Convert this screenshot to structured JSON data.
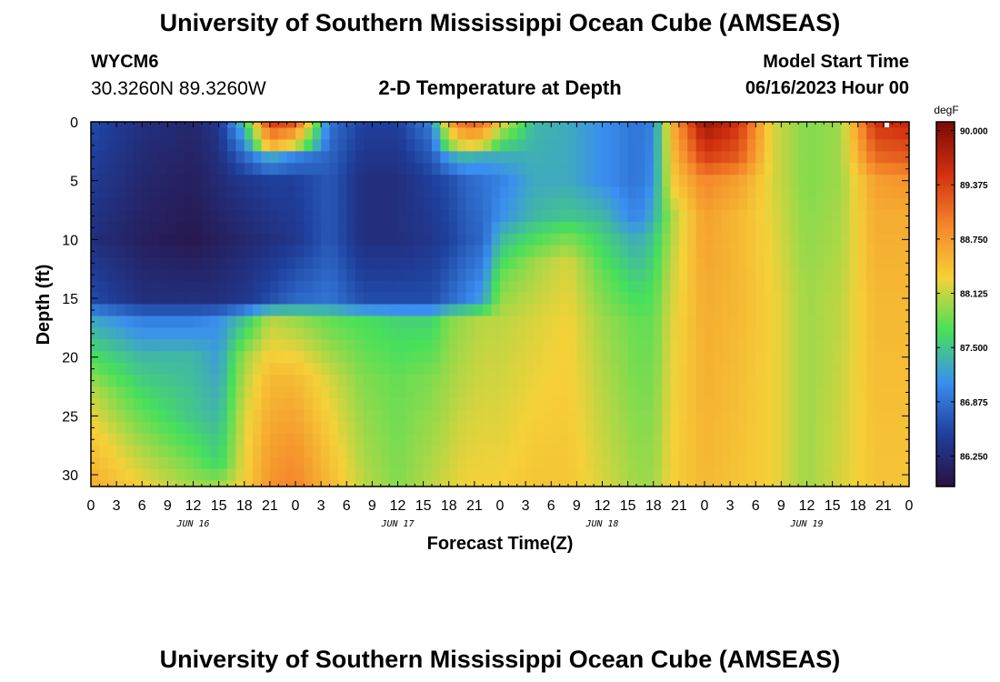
{
  "header": {
    "title": "University of Southern Mississippi Ocean Cube (AMSEAS)",
    "station_id": "WYCM6",
    "coordinates": "30.3260N  89.3260W",
    "subtitle": "2-D Temperature at Depth",
    "model_start_label": "Model Start Time",
    "model_start_value": "06/16/2023 Hour 00",
    "repeated_title": "University of Southern Mississippi Ocean Cube (AMSEAS)"
  },
  "chart_data": {
    "type": "heatmap",
    "title": "2-D Temperature at Depth",
    "xlabel": "Forecast Time(Z)",
    "ylabel": "Depth (ft)",
    "units": "degF",
    "x_range_hours": [
      0,
      96
    ],
    "y_range_ft": [
      0,
      31
    ],
    "y_inverted": true,
    "x_tick_labels": [
      "0",
      "3",
      "6",
      "9",
      "12",
      "15",
      "18",
      "21",
      "0",
      "3",
      "6",
      "9",
      "12",
      "15",
      "18",
      "21",
      "0",
      "3",
      "6",
      "9",
      "12",
      "15",
      "18",
      "21",
      "0",
      "3",
      "6",
      "9",
      "12",
      "15",
      "18",
      "21",
      "0"
    ],
    "x_tick_hours": [
      0,
      3,
      6,
      9,
      12,
      15,
      18,
      21,
      24,
      27,
      30,
      33,
      36,
      39,
      42,
      45,
      48,
      51,
      54,
      57,
      60,
      63,
      66,
      69,
      72,
      75,
      78,
      81,
      84,
      87,
      90,
      93,
      96
    ],
    "date_labels": [
      {
        "label": "JUN 16",
        "hour": 12
      },
      {
        "label": "JUN 17",
        "hour": 36
      },
      {
        "label": "JUN 18",
        "hour": 60
      },
      {
        "label": "JUN 19",
        "hour": 84
      }
    ],
    "y_ticks": [
      0,
      5,
      10,
      15,
      20,
      25,
      30
    ],
    "colorbar": {
      "label": "degF",
      "min": 85.9,
      "max": 90.1,
      "ticks": [
        "90.000",
        "89.375",
        "88.750",
        "88.125",
        "87.500",
        "86.875",
        "86.250"
      ],
      "tick_values": [
        90.0,
        89.375,
        88.75,
        88.125,
        87.5,
        86.875,
        86.25
      ],
      "colors": [
        "#2a1040",
        "#1f3f9c",
        "#3a8ff0",
        "#48e05a",
        "#f5d138",
        "#f5862a",
        "#d2300f",
        "#7a0a05"
      ]
    },
    "grid": false,
    "depth_levels_ft": [
      0,
      1,
      2,
      3,
      4,
      5,
      6,
      7,
      8,
      9,
      10,
      11,
      12,
      13,
      14,
      15,
      16,
      17,
      18,
      19,
      20,
      21,
      22,
      23,
      24,
      25,
      26,
      27,
      28,
      29,
      30,
      31
    ],
    "time_keyframes_hours": [
      0,
      6,
      12,
      15,
      18,
      21,
      24,
      28,
      32,
      36,
      40,
      42,
      44,
      46,
      48,
      52,
      56,
      60,
      64,
      66,
      68,
      72,
      76,
      80,
      84,
      88,
      92,
      96
    ],
    "temperature_profiles": [
      {
        "hour": 0,
        "keys": [
          [
            0,
            86.6
          ],
          [
            10,
            86.3
          ],
          [
            15,
            86.6
          ],
          [
            17,
            87.3
          ],
          [
            20,
            87.7
          ],
          [
            23,
            88.1
          ],
          [
            27,
            88.4
          ],
          [
            31,
            88.6
          ]
        ]
      },
      {
        "hour": 6,
        "keys": [
          [
            0,
            86.3
          ],
          [
            10,
            86.1
          ],
          [
            15,
            86.3
          ],
          [
            17,
            87.0
          ],
          [
            20,
            87.4
          ],
          [
            25,
            87.8
          ],
          [
            31,
            88.3
          ]
        ]
      },
      {
        "hour": 12,
        "keys": [
          [
            0,
            86.2
          ],
          [
            10,
            86.0
          ],
          [
            15,
            86.3
          ],
          [
            17,
            87.0
          ],
          [
            20,
            87.4
          ],
          [
            25,
            87.5
          ],
          [
            31,
            88.0
          ]
        ]
      },
      {
        "hour": 15,
        "keys": [
          [
            0,
            86.4
          ],
          [
            10,
            86.1
          ],
          [
            15,
            86.3
          ],
          [
            17,
            87.1
          ],
          [
            20,
            87.2
          ],
          [
            25,
            87.4
          ],
          [
            29,
            87.6
          ],
          [
            31,
            88.0
          ]
        ]
      },
      {
        "hour": 18,
        "keys": [
          [
            0,
            87.5
          ],
          [
            3,
            86.8
          ],
          [
            5,
            86.4
          ],
          [
            10,
            86.2
          ],
          [
            15,
            86.4
          ],
          [
            17,
            87.5
          ],
          [
            20,
            88.0
          ],
          [
            25,
            88.2
          ],
          [
            31,
            88.3
          ]
        ]
      },
      {
        "hour": 21,
        "keys": [
          [
            0,
            89.4
          ],
          [
            2,
            88.6
          ],
          [
            3,
            87.3
          ],
          [
            5,
            86.5
          ],
          [
            10,
            86.3
          ],
          [
            15,
            86.6
          ],
          [
            17,
            88.1
          ],
          [
            22,
            88.5
          ],
          [
            28,
            88.7
          ],
          [
            31,
            88.8
          ]
        ]
      },
      {
        "hour": 24,
        "keys": [
          [
            0,
            89.2
          ],
          [
            2,
            88.2
          ],
          [
            3,
            87.0
          ],
          [
            5,
            86.5
          ],
          [
            10,
            86.4
          ],
          [
            15,
            86.8
          ],
          [
            17,
            88.0
          ],
          [
            22,
            88.5
          ],
          [
            28,
            88.8
          ],
          [
            31,
            88.9
          ]
        ]
      },
      {
        "hour": 28,
        "keys": [
          [
            0,
            86.9
          ],
          [
            5,
            86.7
          ],
          [
            10,
            86.7
          ],
          [
            15,
            86.9
          ],
          [
            17,
            87.8
          ],
          [
            22,
            88.2
          ],
          [
            31,
            88.5
          ]
        ]
      },
      {
        "hour": 32,
        "keys": [
          [
            0,
            86.5
          ],
          [
            5,
            86.3
          ],
          [
            10,
            86.3
          ],
          [
            15,
            86.6
          ],
          [
            17,
            87.7
          ],
          [
            22,
            87.9
          ],
          [
            31,
            88.1
          ]
        ]
      },
      {
        "hour": 36,
        "keys": [
          [
            0,
            86.5
          ],
          [
            5,
            86.3
          ],
          [
            10,
            86.3
          ],
          [
            15,
            86.6
          ],
          [
            17,
            87.6
          ],
          [
            22,
            87.8
          ],
          [
            31,
            87.9
          ]
        ]
      },
      {
        "hour": 40,
        "keys": [
          [
            0,
            87.0
          ],
          [
            5,
            86.5
          ],
          [
            10,
            86.4
          ],
          [
            15,
            86.6
          ],
          [
            17,
            87.6
          ],
          [
            22,
            87.9
          ],
          [
            31,
            88.1
          ]
        ]
      },
      {
        "hour": 42,
        "keys": [
          [
            0,
            88.6
          ],
          [
            2,
            87.9
          ],
          [
            3,
            87.2
          ],
          [
            5,
            86.6
          ],
          [
            10,
            86.5
          ],
          [
            15,
            86.8
          ],
          [
            17,
            87.9
          ],
          [
            31,
            88.2
          ]
        ]
      },
      {
        "hour": 44,
        "keys": [
          [
            0,
            89.1
          ],
          [
            2,
            88.3
          ],
          [
            3,
            87.4
          ],
          [
            5,
            86.8
          ],
          [
            10,
            86.7
          ],
          [
            15,
            87.0
          ],
          [
            17,
            88.0
          ],
          [
            31,
            88.3
          ]
        ]
      },
      {
        "hour": 46,
        "keys": [
          [
            0,
            89.0
          ],
          [
            2,
            88.2
          ],
          [
            3,
            87.3
          ],
          [
            5,
            86.9
          ],
          [
            10,
            86.8
          ],
          [
            15,
            87.2
          ],
          [
            17,
            88.1
          ],
          [
            31,
            88.3
          ]
        ]
      },
      {
        "hour": 48,
        "keys": [
          [
            0,
            88.3
          ],
          [
            3,
            87.3
          ],
          [
            5,
            87.0
          ],
          [
            8,
            87.1
          ],
          [
            10,
            87.4
          ],
          [
            13,
            87.8
          ],
          [
            17,
            88.1
          ],
          [
            31,
            88.3
          ]
        ]
      },
      {
        "hour": 52,
        "keys": [
          [
            0,
            87.4
          ],
          [
            5,
            87.3
          ],
          [
            8,
            87.4
          ],
          [
            10,
            87.7
          ],
          [
            12,
            88.0
          ],
          [
            17,
            88.2
          ],
          [
            31,
            88.4
          ]
        ]
      },
      {
        "hour": 56,
        "keys": [
          [
            0,
            87.3
          ],
          [
            5,
            87.3
          ],
          [
            8,
            87.5
          ],
          [
            10,
            87.9
          ],
          [
            12,
            88.2
          ],
          [
            17,
            88.3
          ],
          [
            31,
            88.4
          ]
        ]
      },
      {
        "hour": 60,
        "keys": [
          [
            0,
            87.1
          ],
          [
            5,
            87.1
          ],
          [
            8,
            87.4
          ],
          [
            10,
            87.6
          ],
          [
            13,
            87.8
          ],
          [
            17,
            88.0
          ],
          [
            31,
            88.2
          ]
        ]
      },
      {
        "hour": 64,
        "keys": [
          [
            0,
            86.9
          ],
          [
            5,
            86.9
          ],
          [
            8,
            87.0
          ],
          [
            10,
            87.3
          ],
          [
            14,
            87.6
          ],
          [
            17,
            87.8
          ],
          [
            31,
            88.0
          ]
        ]
      },
      {
        "hour": 66,
        "keys": [
          [
            0,
            87.0
          ],
          [
            5,
            87.1
          ],
          [
            8,
            87.3
          ],
          [
            10,
            87.5
          ],
          [
            14,
            87.7
          ],
          [
            17,
            87.8
          ],
          [
            31,
            88.0
          ]
        ]
      },
      {
        "hour": 68,
        "keys": [
          [
            0,
            88.5
          ],
          [
            5,
            88.3
          ],
          [
            8,
            88.0
          ],
          [
            12,
            88.1
          ],
          [
            17,
            88.2
          ],
          [
            31,
            88.3
          ]
        ]
      },
      {
        "hour": 72,
        "keys": [
          [
            0,
            89.9
          ],
          [
            3,
            89.4
          ],
          [
            5,
            88.9
          ],
          [
            8,
            88.7
          ],
          [
            15,
            88.6
          ],
          [
            31,
            88.5
          ]
        ]
      },
      {
        "hour": 76,
        "keys": [
          [
            0,
            89.5
          ],
          [
            3,
            89.2
          ],
          [
            5,
            88.7
          ],
          [
            8,
            88.5
          ],
          [
            15,
            88.5
          ],
          [
            31,
            88.4
          ]
        ]
      },
      {
        "hour": 80,
        "keys": [
          [
            0,
            88.2
          ],
          [
            5,
            88.2
          ],
          [
            15,
            88.3
          ],
          [
            31,
            88.3
          ]
        ]
      },
      {
        "hour": 84,
        "keys": [
          [
            0,
            87.9
          ],
          [
            5,
            87.9
          ],
          [
            15,
            88.0
          ],
          [
            31,
            88.0
          ]
        ]
      },
      {
        "hour": 88,
        "keys": [
          [
            0,
            88.0
          ],
          [
            5,
            88.0
          ],
          [
            15,
            88.1
          ],
          [
            31,
            88.2
          ]
        ]
      },
      {
        "hour": 92,
        "keys": [
          [
            0,
            89.5
          ],
          [
            3,
            89.1
          ],
          [
            5,
            88.7
          ],
          [
            8,
            88.6
          ],
          [
            15,
            88.5
          ],
          [
            31,
            88.4
          ]
        ]
      },
      {
        "hour": 96,
        "keys": [
          [
            0,
            89.6
          ],
          [
            3,
            89.2
          ],
          [
            5,
            88.8
          ],
          [
            8,
            88.6
          ],
          [
            15,
            88.5
          ],
          [
            31,
            88.4
          ]
        ]
      }
    ]
  }
}
